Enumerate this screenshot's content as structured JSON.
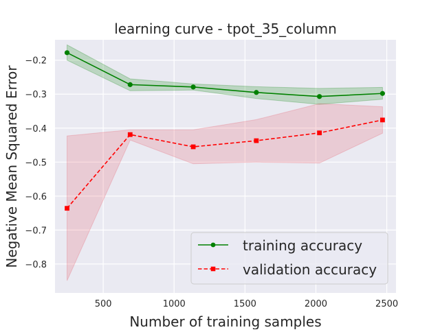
{
  "chart_data": {
    "type": "line",
    "title": "learning curve - tpot_35_column",
    "xlabel": "Number of training samples",
    "ylabel": "Negative Mean Squared Error",
    "xlim": [
      160,
      2565
    ],
    "ylim": [
      -0.885,
      -0.14
    ],
    "xticks": [
      500,
      1000,
      1500,
      2000,
      2500
    ],
    "yticks": [
      -0.8,
      -0.7,
      -0.6,
      -0.5,
      -0.4,
      -0.3,
      -0.2
    ],
    "grid": true,
    "legend_position": "lower-right",
    "x": [
      245,
      690,
      1135,
      1580,
      2025,
      2470
    ],
    "series": [
      {
        "name": "training accuracy",
        "color": "#008000",
        "band_color": "#008000",
        "marker": "circle",
        "line_style": "solid",
        "values": [
          -0.178,
          -0.272,
          -0.279,
          -0.295,
          -0.307,
          -0.298
        ],
        "upper": [
          -0.155,
          -0.255,
          -0.27,
          -0.278,
          -0.283,
          -0.28
        ],
        "lower": [
          -0.2,
          -0.29,
          -0.288,
          -0.313,
          -0.33,
          -0.315
        ]
      },
      {
        "name": "validation accuracy",
        "color": "#ff0000",
        "band_color": "#e8505f",
        "marker": "square",
        "line_style": "dashed",
        "values": [
          -0.636,
          -0.419,
          -0.455,
          -0.437,
          -0.414,
          -0.376
        ],
        "upper": [
          -0.423,
          -0.405,
          -0.405,
          -0.375,
          -0.328,
          -0.337
        ],
        "lower": [
          -0.849,
          -0.435,
          -0.505,
          -0.5,
          -0.503,
          -0.415
        ]
      }
    ]
  }
}
